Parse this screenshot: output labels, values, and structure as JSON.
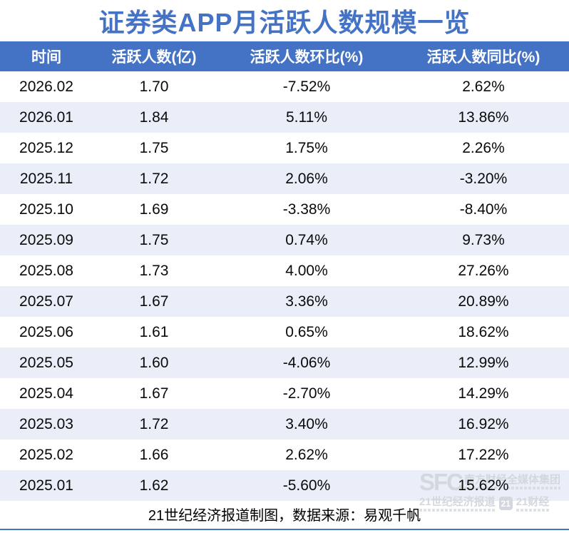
{
  "title": "证券类APP月活跃人数规模一览",
  "table": {
    "headers": [
      "时间",
      "活跃人数(亿)",
      "活跃人数环比(%)",
      "活跃人数同比(%)"
    ],
    "rows": [
      [
        "2026.02",
        "1.70",
        "-7.52%",
        "2.62%"
      ],
      [
        "2026.01",
        "1.84",
        "5.11%",
        "13.86%"
      ],
      [
        "2025.12",
        "1.75",
        "1.75%",
        "2.26%"
      ],
      [
        "2025.11",
        "1.72",
        "2.06%",
        "-3.20%"
      ],
      [
        "2025.10",
        "1.69",
        "-3.38%",
        "-8.40%"
      ],
      [
        "2025.09",
        "1.75",
        "0.74%",
        "9.73%"
      ],
      [
        "2025.08",
        "1.73",
        "4.00%",
        "27.26%"
      ],
      [
        "2025.07",
        "1.67",
        "3.36%",
        "20.89%"
      ],
      [
        "2025.06",
        "1.61",
        "0.65%",
        "18.62%"
      ],
      [
        "2025.05",
        "1.60",
        "-4.06%",
        "12.99%"
      ],
      [
        "2025.04",
        "1.67",
        "-2.70%",
        "14.29%"
      ],
      [
        "2025.03",
        "1.72",
        "3.40%",
        "16.92%"
      ],
      [
        "2025.02",
        "1.66",
        "2.62%",
        "17.22%"
      ],
      [
        "2025.01",
        "1.62",
        "-5.60%",
        "15.62%"
      ]
    ]
  },
  "footer": "21世纪经济报道制图，数据来源：易观千帆",
  "watermark": {
    "sfc": "SFC",
    "group_name": "南方财经全媒体集团",
    "brand1": "21世纪经济报道",
    "badge": "21",
    "brand2": "21财经"
  },
  "colors": {
    "accent_blue": "#4472C4",
    "header_text": "#FFFFFF",
    "alt_row_bg": "#EAEEF8",
    "body_text": "#0A0A0A",
    "watermark_gray": "#D3D7DE"
  },
  "chart_data": {
    "type": "table",
    "title": "证券类APP月活跃人数规模一览",
    "columns": [
      "时间",
      "活跃人数(亿)",
      "活跃人数环比(%)",
      "活跃人数同比(%)"
    ],
    "x": [
      "2026.02",
      "2026.01",
      "2025.12",
      "2025.11",
      "2025.10",
      "2025.09",
      "2025.08",
      "2025.07",
      "2025.06",
      "2025.05",
      "2025.04",
      "2025.03",
      "2025.02",
      "2025.01"
    ],
    "series": [
      {
        "name": "活跃人数(亿)",
        "values": [
          1.7,
          1.84,
          1.75,
          1.72,
          1.69,
          1.75,
          1.73,
          1.67,
          1.61,
          1.6,
          1.67,
          1.72,
          1.66,
          1.62
        ]
      },
      {
        "name": "活跃人数环比(%)",
        "values": [
          -7.52,
          5.11,
          1.75,
          2.06,
          -3.38,
          0.74,
          4.0,
          3.36,
          0.65,
          -4.06,
          -2.7,
          3.4,
          2.62,
          -5.6
        ]
      },
      {
        "name": "活跃人数同比(%)",
        "values": [
          2.62,
          13.86,
          2.26,
          -3.2,
          -8.4,
          9.73,
          27.26,
          20.89,
          18.62,
          12.99,
          14.29,
          16.92,
          17.22,
          15.62
        ]
      }
    ],
    "source_note": "21世纪经济报道制图，数据来源：易观千帆",
    "layout": "header row blue (#4472C4) with white text; body rows alternate white / #EAEEF8; all cells center-aligned; no gridlines; blue title above; source note and thin blue rule at bottom"
  }
}
